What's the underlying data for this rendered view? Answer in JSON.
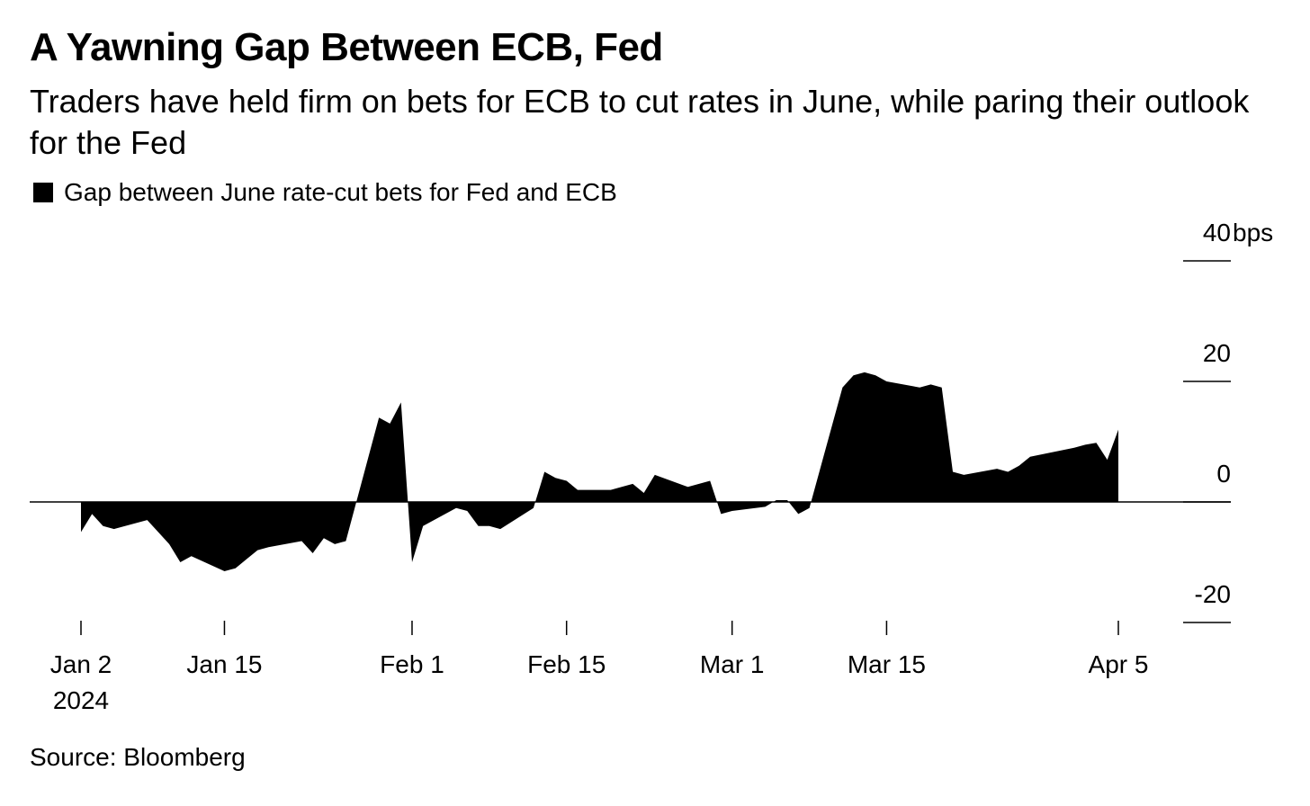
{
  "title": "A Yawning Gap Between ECB, Fed",
  "subtitle": "Traders have held firm on bets for ECB to cut rates in June, while paring their outlook for the Fed",
  "source": "Source: Bloomberg",
  "chart_data": {
    "type": "area",
    "legend": {
      "position": "top-left",
      "entries": [
        "Gap between June rate-cut bets for Fed and ECB"
      ]
    },
    "ylim": [
      -20,
      40
    ],
    "y_unit": "bps",
    "y_ticks": [
      {
        "value": 40,
        "label": "40"
      },
      {
        "value": 20,
        "label": "20"
      },
      {
        "value": 0,
        "label": "0"
      },
      {
        "value": -20,
        "label": "-20"
      }
    ],
    "x_ticks": [
      {
        "date": "2024-01-02",
        "label": "Jan 2",
        "sublabel": "2024"
      },
      {
        "date": "2024-01-15",
        "label": "Jan 15"
      },
      {
        "date": "2024-02-01",
        "label": "Feb 1"
      },
      {
        "date": "2024-02-15",
        "label": "Feb 15"
      },
      {
        "date": "2024-03-01",
        "label": "Mar 1"
      },
      {
        "date": "2024-03-15",
        "label": "Mar 15"
      },
      {
        "date": "2024-04-05",
        "label": "Apr 5"
      }
    ],
    "xlim": [
      "2024-01-02",
      "2024-04-11"
    ],
    "grid": false,
    "series": [
      {
        "name": "Gap between June rate-cut bets for Fed and ECB",
        "color": "#000000",
        "x": [
          "2024-01-02",
          "2024-01-03",
          "2024-01-04",
          "2024-01-05",
          "2024-01-08",
          "2024-01-09",
          "2024-01-10",
          "2024-01-11",
          "2024-01-12",
          "2024-01-15",
          "2024-01-16",
          "2024-01-17",
          "2024-01-18",
          "2024-01-19",
          "2024-01-22",
          "2024-01-23",
          "2024-01-24",
          "2024-01-25",
          "2024-01-26",
          "2024-01-29",
          "2024-01-30",
          "2024-01-31",
          "2024-02-01",
          "2024-02-02",
          "2024-02-05",
          "2024-02-06",
          "2024-02-07",
          "2024-02-08",
          "2024-02-09",
          "2024-02-12",
          "2024-02-13",
          "2024-02-14",
          "2024-02-15",
          "2024-02-16",
          "2024-02-19",
          "2024-02-20",
          "2024-02-21",
          "2024-02-22",
          "2024-02-23",
          "2024-02-26",
          "2024-02-27",
          "2024-02-28",
          "2024-02-29",
          "2024-03-01",
          "2024-03-04",
          "2024-03-05",
          "2024-03-06",
          "2024-03-07",
          "2024-03-08",
          "2024-03-11",
          "2024-03-12",
          "2024-03-13",
          "2024-03-14",
          "2024-03-15",
          "2024-03-18",
          "2024-03-19",
          "2024-03-20",
          "2024-03-21",
          "2024-03-22",
          "2024-03-25",
          "2024-03-26",
          "2024-03-27",
          "2024-03-28",
          "2024-04-01",
          "2024-04-02",
          "2024-04-03",
          "2024-04-04",
          "2024-04-05"
        ],
        "values": [
          -5,
          -2,
          -4,
          -4.5,
          -3,
          -5,
          -7,
          -10,
          -9,
          -11.5,
          -11,
          -9.5,
          -8,
          -7.5,
          -6.5,
          -8.5,
          -6,
          -7,
          -6.5,
          14,
          13,
          16.5,
          -10,
          -4,
          -1,
          -1.5,
          -4,
          -4,
          -4.5,
          -1,
          5,
          4,
          3.5,
          2,
          2,
          2.5,
          3,
          1.5,
          4.5,
          2.5,
          3,
          3.5,
          -2,
          -1.5,
          -0.8,
          0.3,
          0.3,
          -2,
          -1,
          19,
          21,
          21.5,
          21,
          20,
          19,
          19.5,
          19,
          5,
          4.5,
          5.5,
          5,
          6,
          7.5,
          9,
          9.5,
          9.8,
          7,
          12
        ]
      }
    ]
  }
}
